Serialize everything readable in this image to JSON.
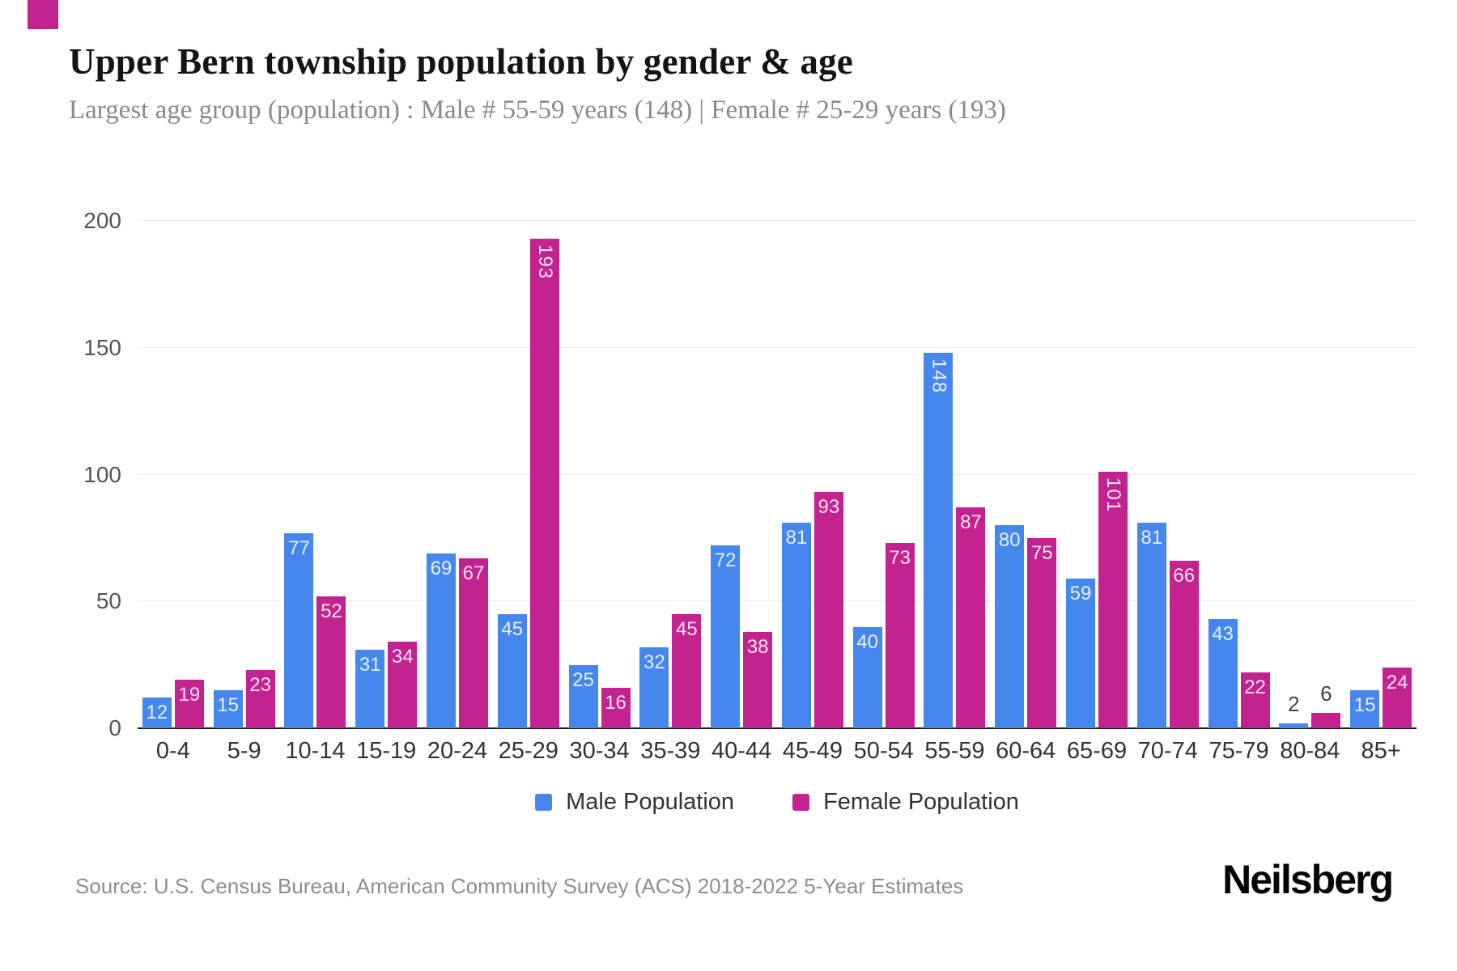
{
  "header": {
    "title": "Upper Bern township population by gender & age",
    "subtitle": "Largest age group (population) : Male # 55-59 years (148) | Female # 25-29 years (193)"
  },
  "colors": {
    "male": "#4687ee",
    "female": "#c2238e",
    "accent_square": "#c2238e"
  },
  "chart_data": {
    "type": "bar",
    "title": "Upper Bern township population by gender & age",
    "categories": [
      "0-4",
      "5-9",
      "10-14",
      "15-19",
      "20-24",
      "25-29",
      "30-34",
      "35-39",
      "40-44",
      "45-49",
      "50-54",
      "55-59",
      "60-64",
      "65-69",
      "70-74",
      "75-79",
      "80-84",
      "85+"
    ],
    "series": [
      {
        "name": "Male Population",
        "color": "#4687ee",
        "values": [
          12,
          15,
          77,
          31,
          69,
          45,
          25,
          32,
          72,
          81,
          40,
          148,
          80,
          59,
          81,
          43,
          2,
          15
        ]
      },
      {
        "name": "Female Population",
        "color": "#c2238e",
        "values": [
          19,
          23,
          52,
          34,
          67,
          193,
          16,
          45,
          38,
          93,
          73,
          87,
          75,
          101,
          66,
          22,
          6,
          24
        ]
      }
    ],
    "xlabel": "",
    "ylabel": "",
    "yticks": [
      0,
      50,
      100,
      150,
      200
    ],
    "ylim": [
      0,
      200
    ],
    "grid": true,
    "legend_position": "bottom"
  },
  "footer": {
    "source": "Source: U.S. Census Bureau, American Community Survey (ACS) 2018-2022 5-Year Estimates",
    "brand": "Neilsberg"
  }
}
